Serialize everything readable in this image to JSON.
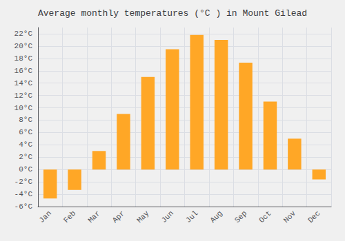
{
  "chart_data": {
    "type": "bar",
    "title": "Average monthly temperatures (°C ) in Mount Gilead",
    "categories": [
      "Jan",
      "Feb",
      "Mar",
      "Apr",
      "May",
      "Jun",
      "Jul",
      "Aug",
      "Sep",
      "Oct",
      "Nov",
      "Dec"
    ],
    "values": [
      -4.7,
      -3.3,
      3.0,
      9.0,
      15.0,
      19.5,
      21.8,
      21.0,
      17.3,
      11.0,
      5.0,
      -1.6
    ],
    "color": "#FFA726",
    "ylim": [
      -6,
      23
    ],
    "yticks": [
      {
        "value": -6,
        "label": "-6°C"
      },
      {
        "value": -4,
        "label": "-4°C"
      },
      {
        "value": -2,
        "label": "-2°C"
      },
      {
        "value": 0,
        "label": "0°C"
      },
      {
        "value": 2,
        "label": "2°C"
      },
      {
        "value": 4,
        "label": "4°C"
      },
      {
        "value": 6,
        "label": "6°C"
      },
      {
        "value": 8,
        "label": "8°C"
      },
      {
        "value": 10,
        "label": "10°C"
      },
      {
        "value": 12,
        "label": "12°C"
      },
      {
        "value": 14,
        "label": "14°C"
      },
      {
        "value": 16,
        "label": "16°C"
      },
      {
        "value": 18,
        "label": "18°C"
      },
      {
        "value": 20,
        "label": "20°C"
      },
      {
        "value": 22,
        "label": "22°C"
      }
    ],
    "grid": true
  }
}
